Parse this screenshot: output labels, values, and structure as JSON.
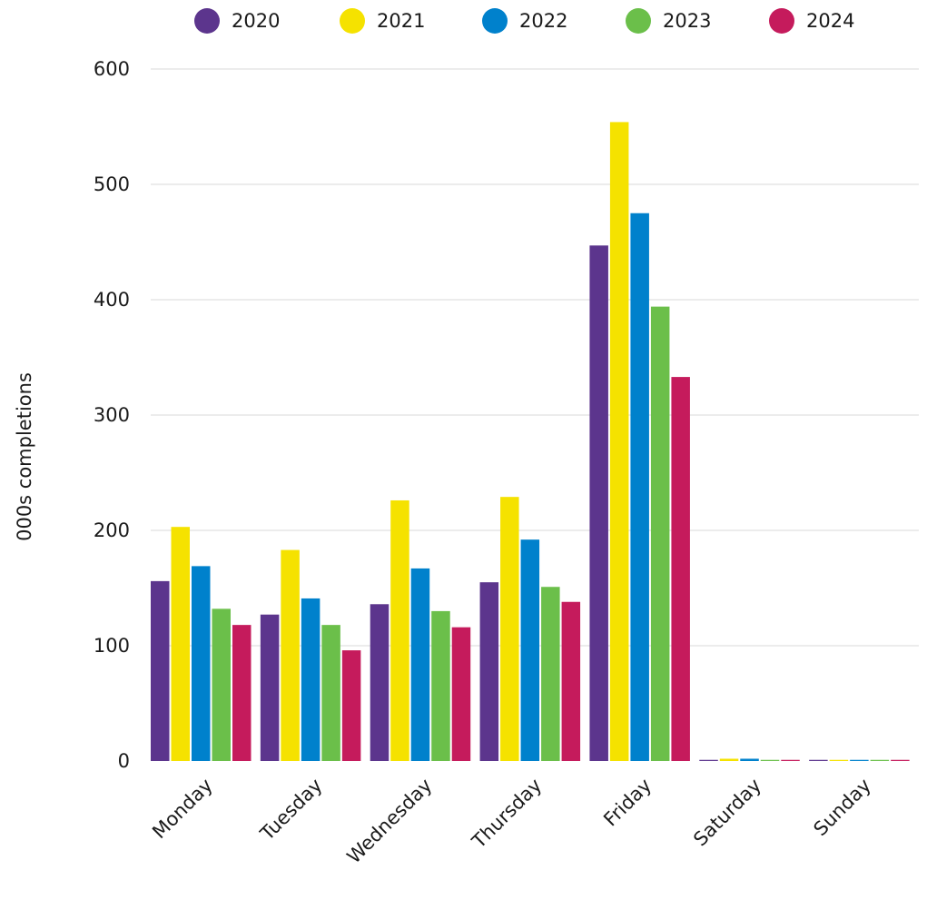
{
  "chart_data": {
    "type": "bar",
    "ylabel": "000s completions",
    "xlabel": "",
    "ylim": [
      0,
      600
    ],
    "yticks": [
      0,
      100,
      200,
      300,
      400,
      500,
      600
    ],
    "grid": true,
    "legend_position": "top",
    "categories": [
      "Monday",
      "Tuesday",
      "Wednesday",
      "Thursday",
      "Friday",
      "Saturday",
      "Sunday"
    ],
    "series": [
      {
        "name": "2020",
        "color": "#5c358d",
        "values": [
          156,
          127,
          136,
          155,
          447,
          1,
          1
        ]
      },
      {
        "name": "2021",
        "color": "#f5e200",
        "values": [
          203,
          183,
          226,
          229,
          554,
          2,
          1
        ]
      },
      {
        "name": "2022",
        "color": "#0081cc",
        "values": [
          169,
          141,
          167,
          192,
          475,
          2,
          1
        ]
      },
      {
        "name": "2023",
        "color": "#6bbf4a",
        "values": [
          132,
          118,
          130,
          151,
          394,
          1,
          1
        ]
      },
      {
        "name": "2024",
        "color": "#c51b5c",
        "values": [
          118,
          96,
          116,
          138,
          333,
          1,
          1
        ]
      }
    ]
  }
}
